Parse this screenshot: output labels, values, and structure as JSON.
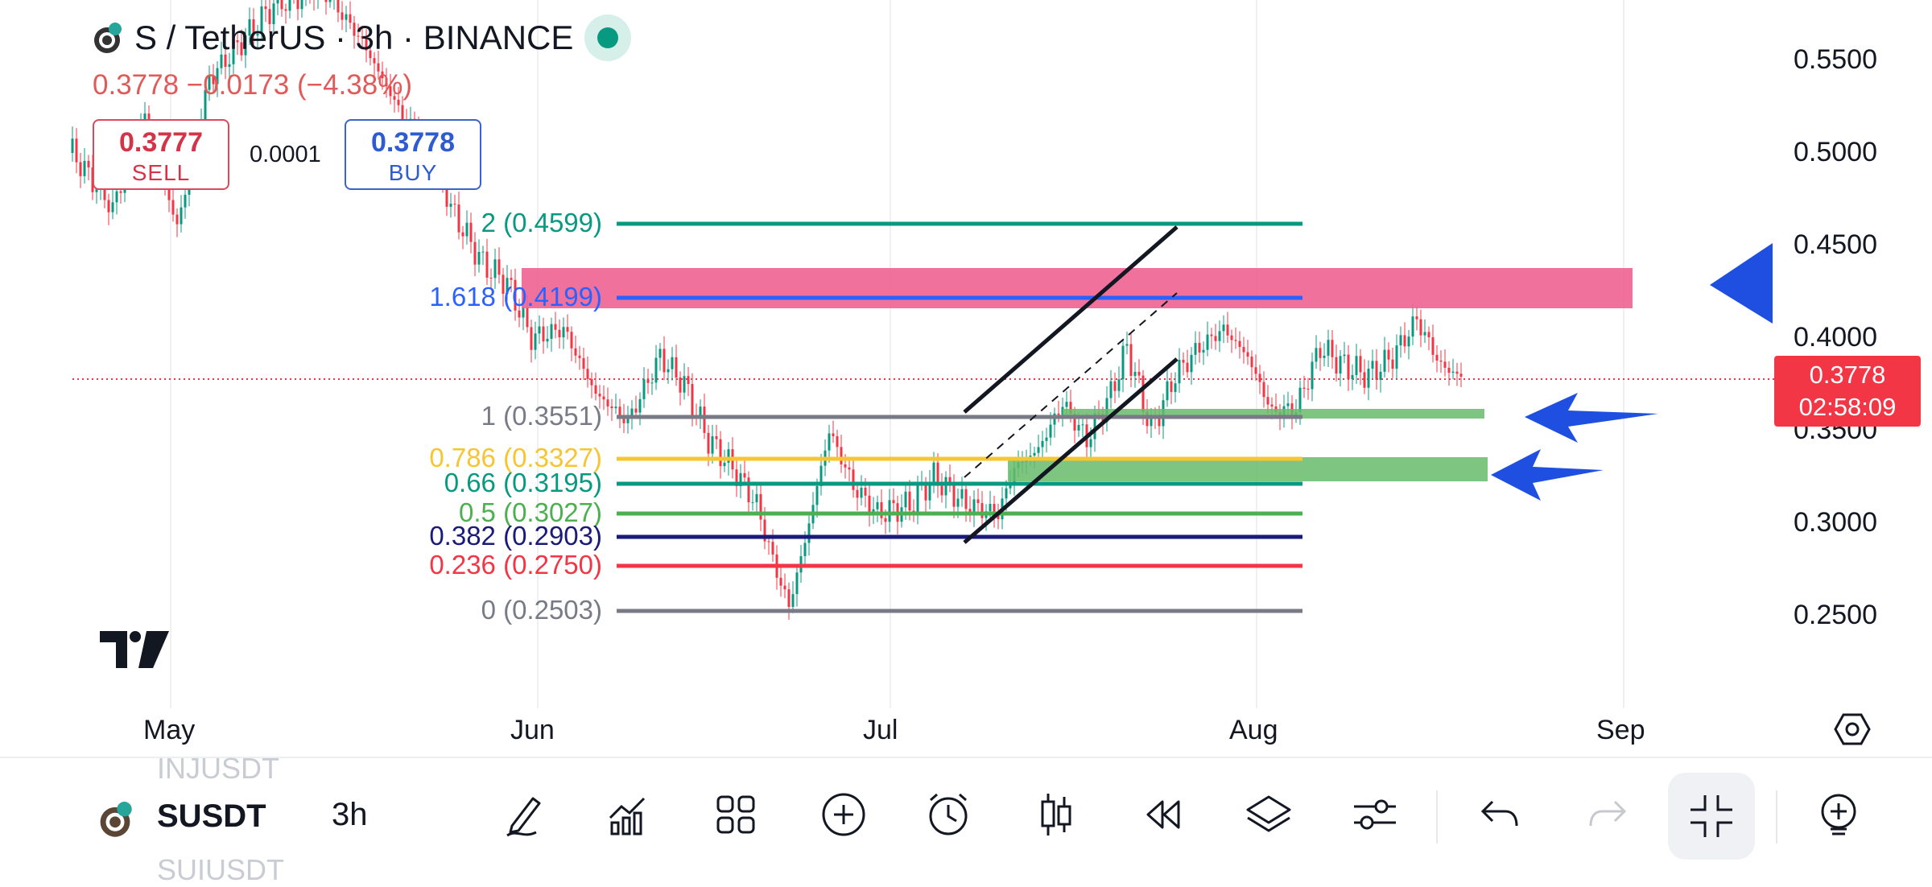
{
  "header": {
    "title": "S / TetherUS · 3h · BINANCE",
    "price_change": "0.3778 −0.0173 (−4.38%)",
    "sell_price": "0.3777",
    "sell_label": "SELL",
    "buy_price": "0.3778",
    "buy_label": "BUY",
    "spread": "0.0001"
  },
  "price_axis": {
    "labels": [
      "0.5500",
      "0.5000",
      "0.4500",
      "0.4000",
      "0.3500",
      "0.3000",
      "0.2500"
    ],
    "current_price": "0.3778",
    "countdown": "02:58:09"
  },
  "time_axis": {
    "labels": [
      "May",
      "Jun",
      "Jul",
      "Aug",
      "Sep"
    ]
  },
  "fib_levels": [
    {
      "label": "2 (0.4599)",
      "color": "#089981"
    },
    {
      "label": "1.618 (0.4199)",
      "color": "#2962ff"
    },
    {
      "label": "1 (0.3551)",
      "color": "#787b86"
    },
    {
      "label": "0.786 (0.3327)",
      "color": "#f7c531"
    },
    {
      "label": "0.66 (0.3195)",
      "color": "#089981"
    },
    {
      "label": "0.5 (0.3027)",
      "color": "#4caf50"
    },
    {
      "label": "0.382 (0.2903)",
      "color": "#1a1a7a"
    },
    {
      "label": "0.236 (0.2750)",
      "color": "#f23645"
    },
    {
      "label": "0 (0.2503)",
      "color": "#787b86"
    }
  ],
  "toolbar": {
    "symbol": "SUSDT",
    "symbol_prev": "INJUSDT",
    "symbol_next": "SUIUSDT",
    "timeframe": "3h",
    "icons": [
      "pencil-icon",
      "indicators-icon",
      "templates-icon",
      "add-icon",
      "alert-icon",
      "candles-icon",
      "replay-icon",
      "layers-icon",
      "settings-sliders-icon",
      "undo-icon",
      "redo-icon",
      "collapse-icon",
      "add-indicator-icon"
    ]
  },
  "colors": {
    "up": "#089981",
    "down": "#f23645",
    "resistance_zone": "#f06292",
    "support_zone": "#66bb6a",
    "arrow": "#1e4fe0"
  }
}
